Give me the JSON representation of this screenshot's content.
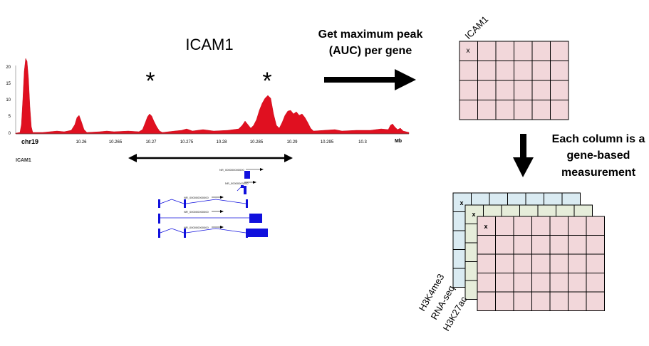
{
  "gene_title": "ICAM1",
  "chart": {
    "yticks": [
      "20",
      "15",
      "10",
      "5",
      "0"
    ],
    "chrom_label": "chr19",
    "xticks": [
      "10.26",
      "10.265",
      "10.27",
      "10.275",
      "10.28",
      "10.285",
      "10.29",
      "10.295",
      "10.3"
    ],
    "x_unit": "Mb",
    "peak_markers": [
      "*",
      "*"
    ],
    "track_label": "ICAM1",
    "transcript_labels": [
      "NR_000000000000",
      "NR_00000000000",
      "NR_000000000000",
      "NR_000000000000",
      "NR_000000000000"
    ],
    "colors": {
      "signal": "#e01020",
      "gene_model": "#1010dd"
    }
  },
  "arrow1_label": [
    "Get maximum peak",
    "(AUC) per gene"
  ],
  "matrix_top": {
    "column_label": "ICAM1",
    "cell_marker": "x",
    "fill": "#f2d7da",
    "rows": 4,
    "cols": 6
  },
  "arrow2_label": [
    "Each column is a",
    "gene-based",
    "measurement"
  ],
  "stack": {
    "layers": [
      {
        "name": "H3K4me3",
        "fill": "#daebf2"
      },
      {
        "name": "RNA-seq",
        "fill": "#e6edda"
      },
      {
        "name": "H3K27ac",
        "fill": "#f2d7da"
      }
    ],
    "cell_marker": "x"
  }
}
